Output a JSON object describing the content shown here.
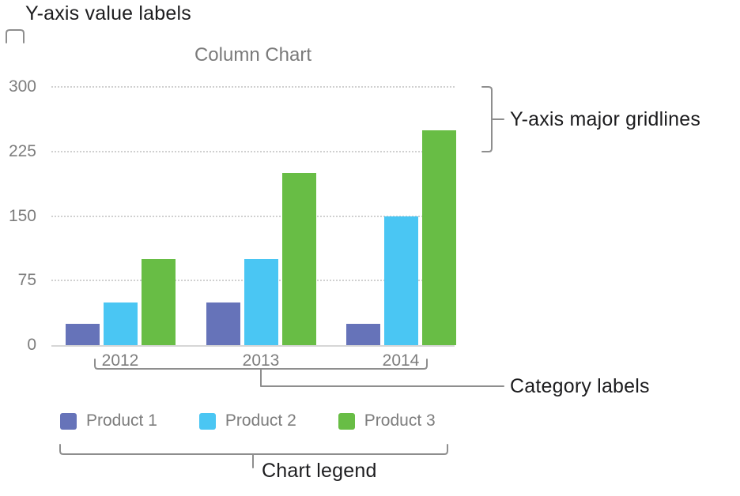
{
  "callouts": {
    "y_value_labels": "Y-axis value labels",
    "y_major_gridlines": "Y-axis major gridlines",
    "category_labels": "Category labels",
    "chart_legend": "Chart legend"
  },
  "chart_data": {
    "type": "bar",
    "title": "Column Chart",
    "categories": [
      "2012",
      "2013",
      "2014"
    ],
    "series": [
      {
        "name": "Product 1",
        "color": "#6673b9",
        "values": [
          25,
          50,
          25
        ]
      },
      {
        "name": "Product 2",
        "color": "#4ac6f3",
        "values": [
          50,
          100,
          150
        ]
      },
      {
        "name": "Product 3",
        "color": "#68bd45",
        "values": [
          100,
          200,
          250
        ]
      }
    ],
    "y_ticks": [
      0,
      75,
      150,
      225,
      300
    ],
    "ylim": [
      0,
      300
    ],
    "grid": "horizontal-dotted",
    "legend_position": "bottom",
    "text_color": "#7d7d7d"
  }
}
